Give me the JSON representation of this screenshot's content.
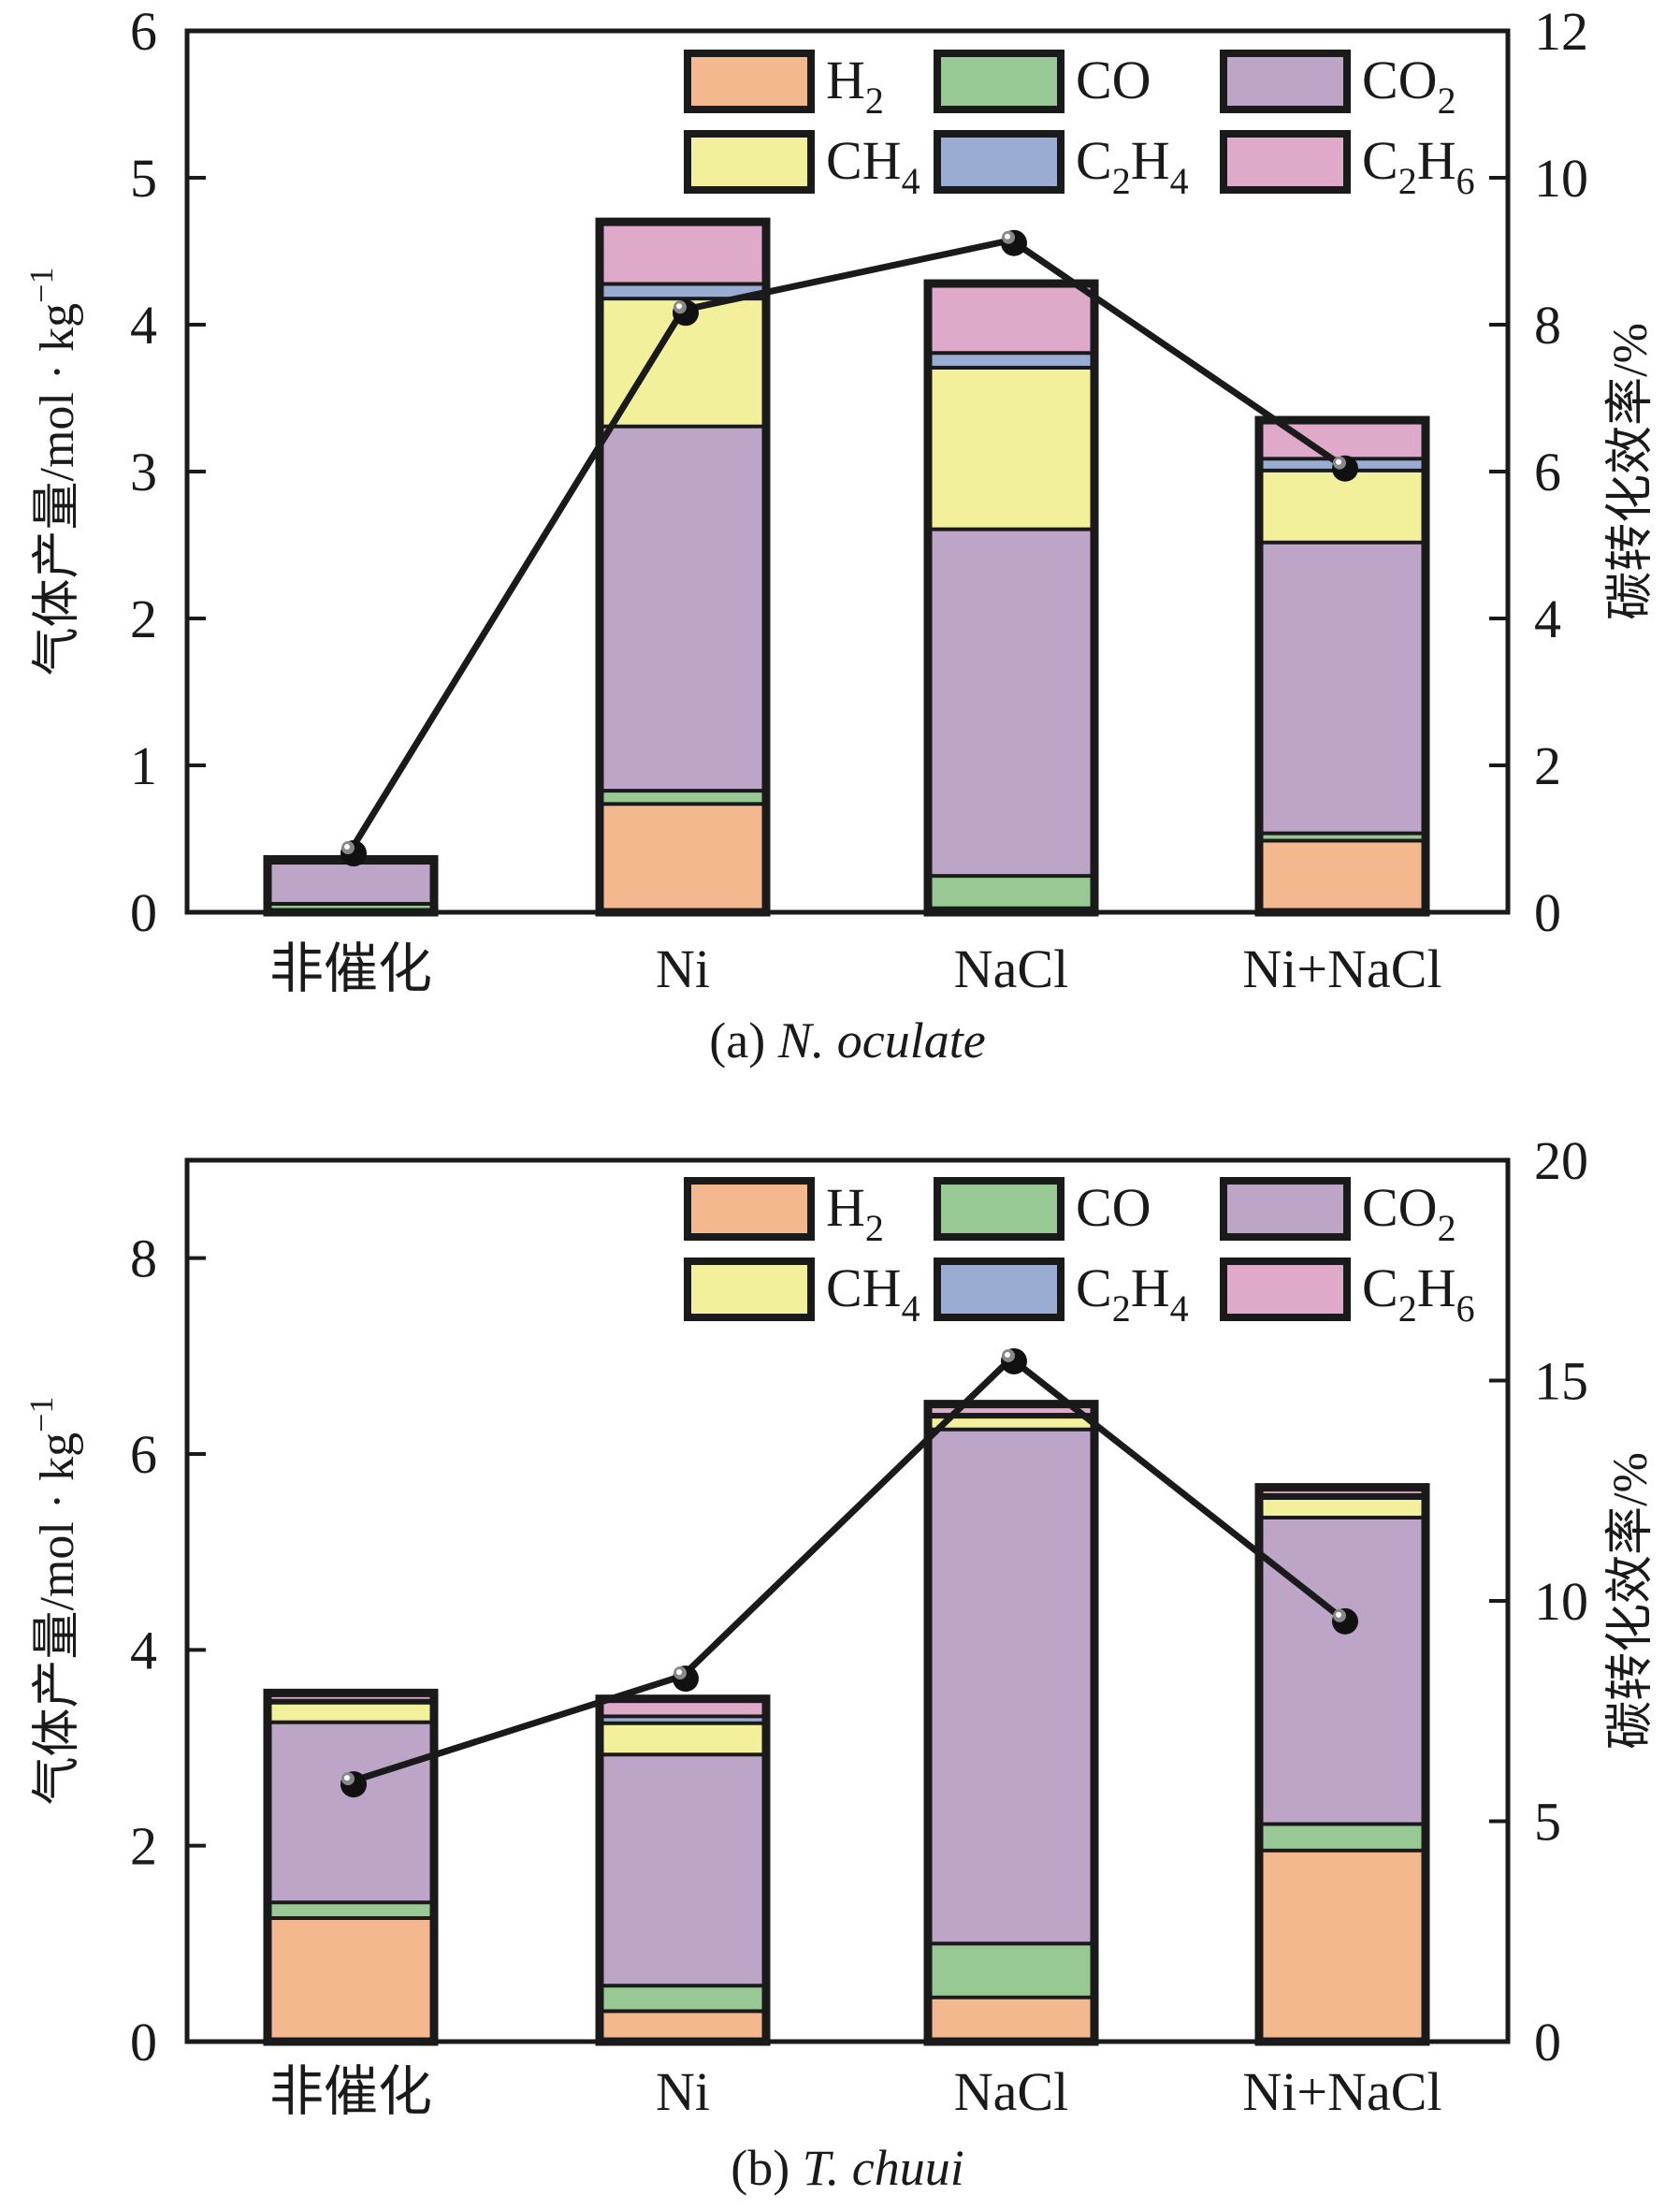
{
  "colors": {
    "H2": "#F4B88E",
    "CO": "#98C994",
    "CO2": "#BCA5C6",
    "CH4": "#F2F09B",
    "C2H4": "#9AACD2",
    "C2H6": "#DFAACA",
    "outline": "#1a1a1a"
  },
  "legend": [
    {
      "key": "H2",
      "base": "H",
      "sub": "2",
      "tail": ""
    },
    {
      "key": "CO",
      "base": "CO",
      "sub": "",
      "tail": ""
    },
    {
      "key": "CO2",
      "base": "CO",
      "sub": "2",
      "tail": ""
    },
    {
      "key": "CH4",
      "base": "CH",
      "sub": "4",
      "tail": ""
    },
    {
      "key": "C2H4",
      "base": "C",
      "sub": "2",
      "tail": "H",
      "sub2": "4"
    },
    {
      "key": "C2H6",
      "base": "C",
      "sub": "2",
      "tail": "H",
      "sub2": "6"
    }
  ],
  "chart_data": [
    {
      "type": "bar",
      "subtype": "stacked-bar-with-line",
      "caption_prefix": "(a) ",
      "caption_italic": "N. oculate",
      "title": "(a) N. oculate",
      "categories": [
        "非催化",
        "Ni",
        "NaCl",
        "Ni+NaCl"
      ],
      "ylabel": "气体产量/mol · kg⁻¹",
      "ylabel_parts": {
        "main": "气体产量/mol · kg",
        "sup": "−1"
      },
      "ylim": [
        0,
        6
      ],
      "yticks": [
        0,
        1,
        2,
        3,
        4,
        5,
        6
      ],
      "y2label": "碳转化效率/%",
      "y2lim": [
        0,
        12
      ],
      "y2ticks": [
        0,
        2,
        4,
        6,
        8,
        10,
        12
      ],
      "legend_position": "top-right",
      "grid": false,
      "series": [
        {
          "name": "H2",
          "values": [
            0.02,
            0.75,
            0.04,
            0.5
          ]
        },
        {
          "name": "CO",
          "values": [
            0.05,
            0.09,
            0.22,
            0.05
          ]
        },
        {
          "name": "CO2",
          "values": [
            0.28,
            2.48,
            2.36,
            1.98
          ]
        },
        {
          "name": "CH4",
          "values": [
            0.0,
            0.87,
            1.1,
            0.49
          ]
        },
        {
          "name": "C2H4",
          "values": [
            0.0,
            0.1,
            0.1,
            0.08
          ]
        },
        {
          "name": "C2H6",
          "values": [
            0.01,
            0.41,
            0.46,
            0.25
          ]
        }
      ],
      "line": {
        "name": "碳转化效率",
        "axis": "right",
        "values": [
          0.84,
          8.2,
          9.15,
          6.08
        ]
      }
    },
    {
      "type": "bar",
      "subtype": "stacked-bar-with-line",
      "caption_prefix": "(b) ",
      "caption_italic": "T. chuui",
      "title": "(b) T. chuui",
      "categories": [
        "非催化",
        "Ni",
        "NaCl",
        "Ni+NaCl"
      ],
      "ylabel": "气体产量/mol · kg⁻¹",
      "ylabel_parts": {
        "main": "气体产量/mol · kg",
        "sup": "−1"
      },
      "ylim": [
        0,
        9
      ],
      "yticks": [
        0,
        2,
        4,
        6,
        8
      ],
      "y2label": "碳转化效率/%",
      "y2lim": [
        0,
        20
      ],
      "y2ticks": [
        0,
        5,
        10,
        15,
        20
      ],
      "legend_position": "top-right",
      "grid": false,
      "series": [
        {
          "name": "H2",
          "values": [
            1.28,
            0.33,
            0.47,
            1.97
          ]
        },
        {
          "name": "CO",
          "values": [
            0.16,
            0.26,
            0.55,
            0.27
          ]
        },
        {
          "name": "CO2",
          "values": [
            1.84,
            2.36,
            5.25,
            3.13
          ]
        },
        {
          "name": "CH4",
          "values": [
            0.2,
            0.32,
            0.13,
            0.2
          ]
        },
        {
          "name": "C2H4",
          "values": [
            0.02,
            0.07,
            0.02,
            0.03
          ]
        },
        {
          "name": "C2H6",
          "values": [
            0.06,
            0.16,
            0.09,
            0.06
          ]
        }
      ],
      "line": {
        "name": "碳转化效率",
        "axis": "right",
        "values": [
          5.9,
          8.3,
          15.5,
          9.6
        ]
      }
    }
  ]
}
